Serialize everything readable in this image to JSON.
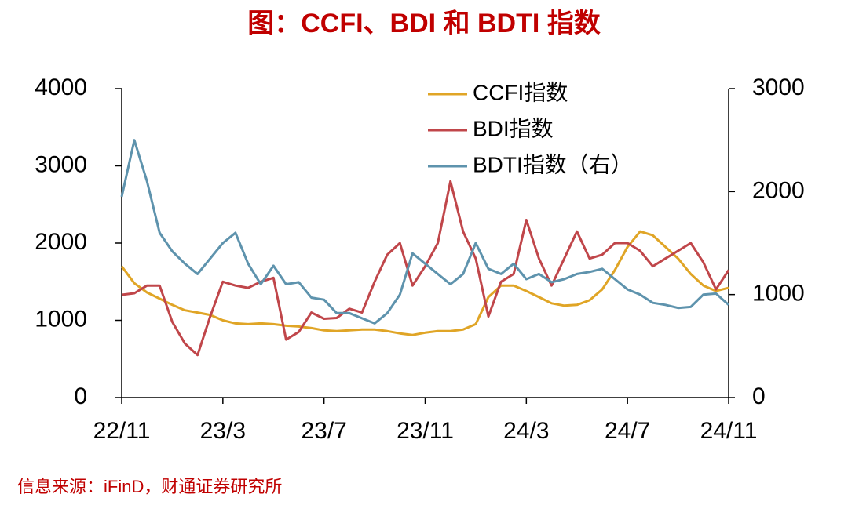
{
  "chart_data": {
    "type": "line",
    "title": "图：CCFI、BDI 和 BDTI 指数",
    "source": "信息来源：iFinD，财通证券研究所",
    "categories": [
      "22/11",
      null,
      null,
      null,
      null,
      null,
      null,
      null,
      "23/3",
      null,
      null,
      null,
      null,
      null,
      null,
      null,
      "23/7",
      null,
      null,
      null,
      null,
      null,
      null,
      null,
      "23/11",
      null,
      null,
      null,
      null,
      null,
      null,
      null,
      "24/3",
      null,
      null,
      null,
      null,
      null,
      null,
      null,
      "24/7",
      null,
      null,
      null,
      null,
      null,
      null,
      null,
      "24/11"
    ],
    "series": [
      {
        "name": "CCFI指数",
        "color": "#e0a526",
        "values": [
          1700,
          1480,
          1360,
          1280,
          1200,
          1130,
          1100,
          1070,
          1000,
          960,
          950,
          960,
          950,
          930,
          920,
          900,
          870,
          860,
          870,
          880,
          880,
          860,
          830,
          810,
          840,
          860,
          860,
          880,
          950,
          1300,
          1450,
          1450,
          1380,
          1300,
          1220,
          1190,
          1200,
          1260,
          1400,
          1650,
          1950,
          2150,
          2100,
          1950,
          1800,
          1600,
          1450,
          1380,
          1420
        ]
      },
      {
        "name": "BDI指数",
        "color": "#c0464a",
        "values": [
          1330,
          1350,
          1450,
          1450,
          980,
          700,
          550,
          1050,
          1500,
          1450,
          1420,
          1500,
          1550,
          750,
          850,
          1100,
          1020,
          1030,
          1150,
          1100,
          1500,
          1850,
          2000,
          1450,
          1700,
          2000,
          2800,
          2150,
          1800,
          1050,
          1500,
          1600,
          2300,
          1800,
          1450,
          1800,
          2150,
          1800,
          1850,
          2000,
          2000,
          1900,
          1700,
          1800,
          1900,
          2000,
          1750,
          1400,
          1650
        ]
      },
      {
        "name": "BDTI指数（右）",
        "color": "#5e93ad",
        "axis": "y2",
        "values": [
          1950,
          2500,
          2100,
          1600,
          1420,
          1300,
          1200,
          1350,
          1500,
          1600,
          1300,
          1100,
          1280,
          1100,
          1120,
          970,
          950,
          820,
          820,
          770,
          720,
          820,
          1000,
          1400,
          1300,
          1200,
          1100,
          1200,
          1500,
          1250,
          1200,
          1300,
          1150,
          1200,
          1120,
          1150,
          1200,
          1220,
          1250,
          1150,
          1050,
          1000,
          920,
          900,
          870,
          880,
          1000,
          1010,
          900
        ]
      }
    ],
    "ylim": [
      0,
      4000
    ],
    "yticks": [
      0,
      1000,
      2000,
      3000,
      4000
    ],
    "y2lim": [
      0,
      3000
    ],
    "y2ticks": [
      0,
      1000,
      2000,
      3000
    ]
  }
}
